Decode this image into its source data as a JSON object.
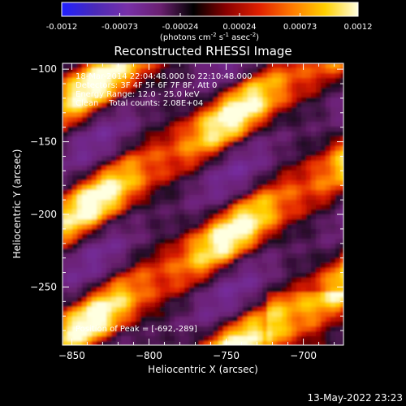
{
  "chart_data": {
    "type": "heatmap",
    "title": "Reconstructed RHESSI Image",
    "xlabel": "Heliocentric X (arcsec)",
    "ylabel": "Heliocentric Y (arcsec)",
    "xlim": [
      -856,
      -674
    ],
    "ylim": [
      -290,
      -96
    ],
    "x_ticks": [
      -850,
      -800,
      -750,
      -700
    ],
    "y_ticks": [
      -100,
      -150,
      -200,
      -250
    ],
    "colorbar": {
      "range": [
        -0.0012,
        0.0012
      ],
      "tick_values": [
        -0.0012,
        -0.00073,
        -0.00024,
        0.00024,
        0.00073,
        0.0012
      ],
      "tick_labels": [
        "-0.0012",
        "-0.00073",
        "-0.00024",
        "0.00024",
        "0.00073",
        "0.0012"
      ],
      "colormap": [
        "#2020ff",
        "#4a2ab8",
        "#7830a8",
        "#6a2070",
        "#000000",
        "#8a0000",
        "#e02000",
        "#ff7a00",
        "#ffd000",
        "#ffffe0"
      ]
    },
    "unit_label": {
      "pre": "(photons cm",
      "e1": "-2",
      "mid": " s",
      "e2": "-1",
      "mid2": " asec",
      "e3": "-2",
      "post": ")"
    },
    "annotations": [
      "18-Mar-2014 22:04:48.000 to 22:10:48.000",
      "Detectors: 3F 4F 5F 6F 7F 8F, Att 0",
      "Energy Range: 12.0 - 25.0 keV",
      "Clean    Total counts: 2.08E+04"
    ],
    "peak_label": "Position of Peak = [-692,-289]",
    "peak": {
      "x": -692,
      "y": -289
    },
    "timestamp": "13-May-2022 23:23",
    "field_description": "diagonal stripes of positive emission running lower-left to upper-right"
  }
}
